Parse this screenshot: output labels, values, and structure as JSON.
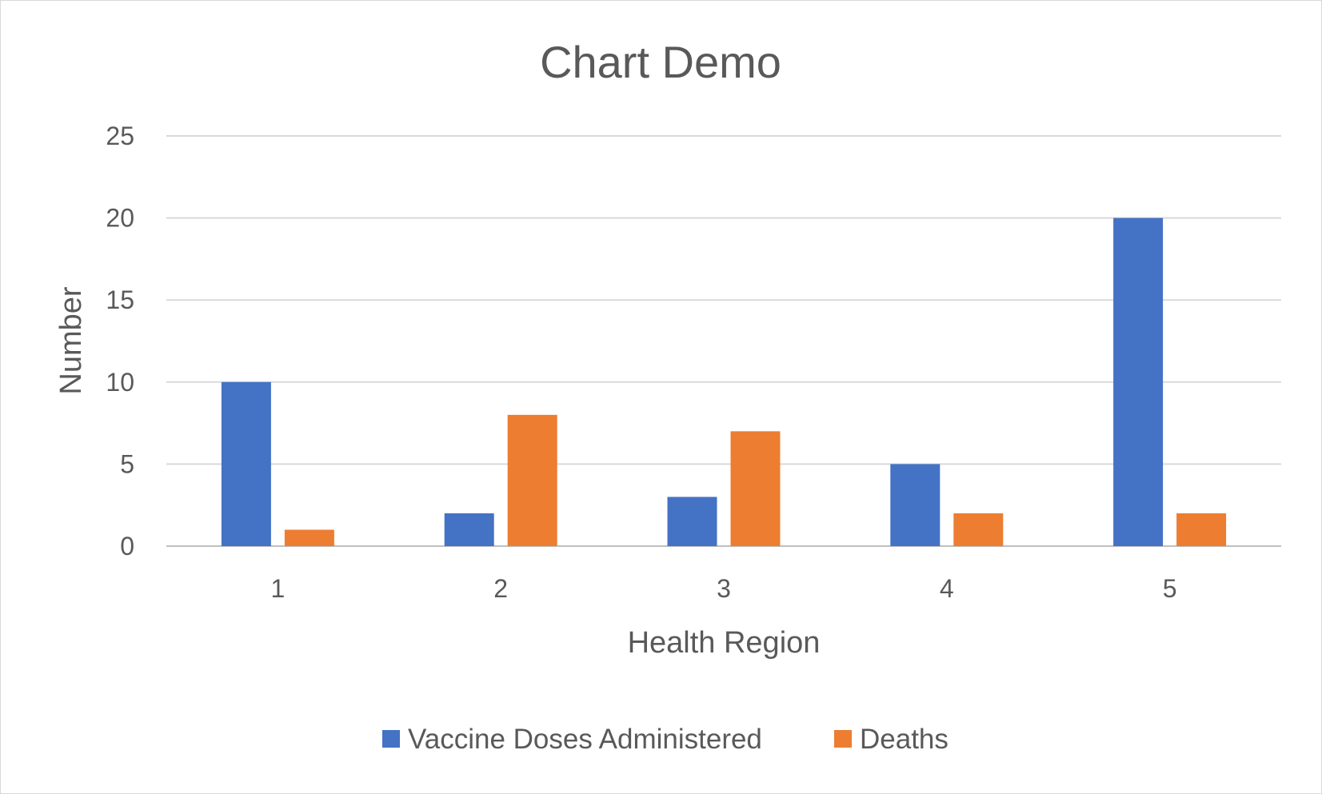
{
  "chart_data": {
    "type": "bar",
    "title": "Chart Demo",
    "xlabel": "Health Region",
    "ylabel": "Number",
    "categories": [
      "1",
      "2",
      "3",
      "4",
      "5"
    ],
    "series": [
      {
        "name": "Vaccine Doses Administered",
        "color": "#4472C4",
        "values": [
          10,
          2,
          3,
          5,
          20
        ]
      },
      {
        "name": "Deaths",
        "color": "#ED7D31",
        "values": [
          1,
          8,
          7,
          2,
          2
        ]
      }
    ],
    "ylim": [
      0,
      25
    ],
    "yticks": [
      0,
      5,
      10,
      15,
      20,
      25
    ],
    "grid": true,
    "legend_position": "bottom"
  }
}
